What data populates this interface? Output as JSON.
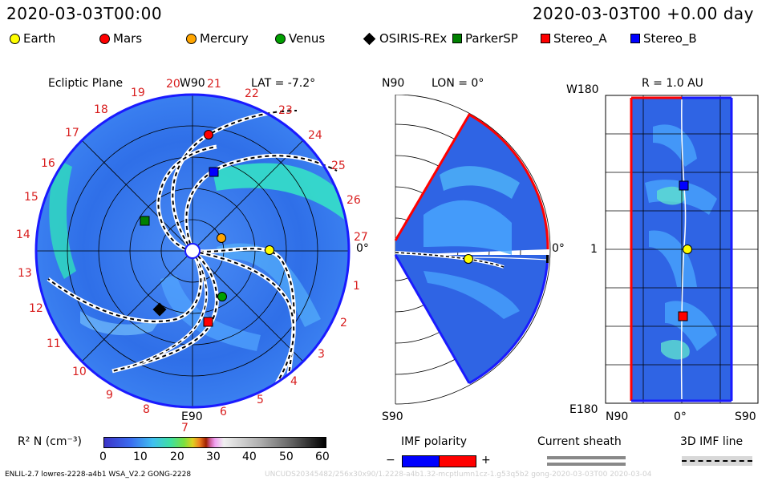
{
  "header": {
    "datetime_left": "2020-03-03T00:00",
    "datetime_right": "2020-03-03T00 +0.00 day"
  },
  "legend": {
    "items": [
      {
        "label": "Earth",
        "color": "#ffff00",
        "shape": "circle"
      },
      {
        "label": "Mars",
        "color": "#ff0000",
        "shape": "circle"
      },
      {
        "label": "Mercury",
        "color": "#ffa500",
        "shape": "circle"
      },
      {
        "label": "Venus",
        "color": "#00a000",
        "shape": "circle"
      },
      {
        "label": "OSIRIS-REx",
        "color": "#000000",
        "shape": "diamond"
      },
      {
        "label": "ParkerSP",
        "color": "#008000",
        "shape": "square"
      },
      {
        "label": "Stereo_A",
        "color": "#ff0000",
        "shape": "square"
      },
      {
        "label": "Stereo_B",
        "color": "#0000ff",
        "shape": "square"
      }
    ]
  },
  "panel_ecliptic": {
    "title": "Ecliptic Plane",
    "top_label": "W90",
    "lat_label": "LAT = -7.2°",
    "bottom_label": "E90",
    "right_label": "0°",
    "rotation_numbers": [
      "20",
      "21",
      "22",
      "23",
      "24",
      "25",
      "26",
      "27",
      "1",
      "2",
      "3",
      "4",
      "5",
      "6",
      "7",
      "8",
      "9",
      "10",
      "11",
      "12",
      "13",
      "14",
      "15",
      "16",
      "17",
      "18",
      "19"
    ]
  },
  "panel_meridional": {
    "top_label": "N90",
    "lon_label": "LON = 0°",
    "bottom_label": "S90",
    "right_label": "0°"
  },
  "panel_radial": {
    "top_left_label": "W180",
    "title": "R = 1.0 AU",
    "middle_left_label": "1",
    "bottom_left_label": "E180",
    "x_labels": [
      "N90",
      "0°",
      "S90"
    ]
  },
  "colorbar": {
    "label": "R² N (cm⁻³)",
    "ticks": [
      "0",
      "10",
      "20",
      "30",
      "40",
      "50",
      "60"
    ]
  },
  "imf_legend": {
    "title": "IMF polarity",
    "minus": "−",
    "plus": "+",
    "neg_color": "#0000ff",
    "pos_color": "#ff0000"
  },
  "sheath_legend": {
    "title": "Current sheath"
  },
  "imf_line_legend": {
    "title": "3D IMF line"
  },
  "footer": {
    "left": "ENLIL-2.7 lowres-2228-a4b1 WSA_V2.2 GONG-2228",
    "right": "UNCUDS20345482/256x30x90/1.2228-a4b1.32-mcptlumn1cz-1.g53q5b2 gong-2020-03-03T00  2020-03-04"
  }
}
